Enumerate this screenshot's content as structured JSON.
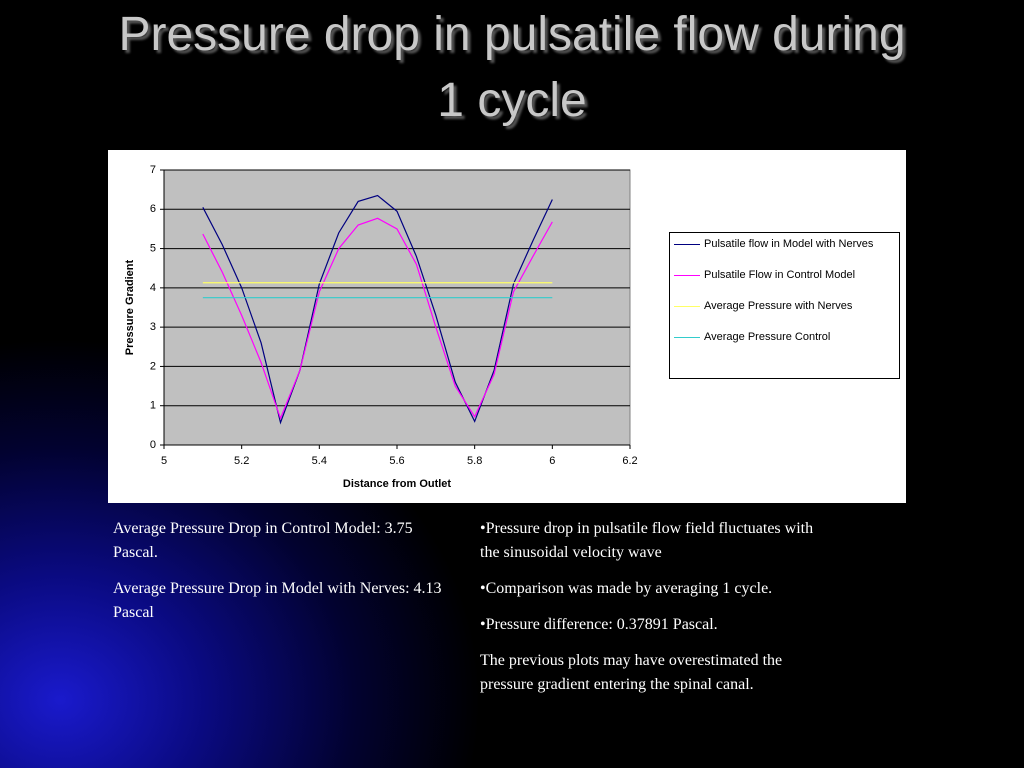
{
  "title": "Pressure drop in pulsatile flow during 1 cycle",
  "chart_data": {
    "type": "line",
    "xlabel": "Distance from Outlet",
    "ylabel": "Pressure Gradient",
    "xlim": [
      5,
      6.2
    ],
    "xticks": [
      5,
      5.2,
      5.4,
      5.6,
      5.8,
      6,
      6.2
    ],
    "ylim": [
      0,
      7
    ],
    "yticks": [
      0,
      1,
      2,
      3,
      4,
      5,
      6,
      7
    ],
    "grid": true,
    "legend": "right",
    "series": [
      {
        "name": "Pulsatile flow in Model with Nerves",
        "color": "#000080",
        "x": [
          5.1,
          5.15,
          5.2,
          5.25,
          5.3,
          5.35,
          5.4,
          5.45,
          5.5,
          5.55,
          5.6,
          5.65,
          5.7,
          5.75,
          5.8,
          5.85,
          5.9,
          5.95,
          6.0
        ],
        "values": [
          6.05,
          5.1,
          4.0,
          2.6,
          0.57,
          1.9,
          4.1,
          5.4,
          6.2,
          6.35,
          5.95,
          4.8,
          3.3,
          1.6,
          0.6,
          1.9,
          4.1,
          5.2,
          6.25
        ]
      },
      {
        "name": "Pulsatile Flow in Control Model",
        "color": "#ff00ff",
        "x": [
          5.1,
          5.15,
          5.2,
          5.25,
          5.3,
          5.35,
          5.4,
          5.45,
          5.5,
          5.55,
          5.6,
          5.65,
          5.7,
          5.75,
          5.8,
          5.85,
          5.9,
          5.95,
          6.0
        ],
        "values": [
          5.37,
          4.4,
          3.3,
          2.1,
          0.68,
          1.9,
          3.9,
          5.0,
          5.6,
          5.77,
          5.5,
          4.6,
          3.0,
          1.5,
          0.72,
          1.8,
          3.9,
          4.8,
          5.68
        ]
      },
      {
        "name": "Average Pressure with Nerves",
        "color": "#ffff66",
        "x": [
          5.1,
          6.0
        ],
        "values": [
          4.13,
          4.13
        ]
      },
      {
        "name": "Average Pressure Control",
        "color": "#33cccc",
        "x": [
          5.1,
          6.0
        ],
        "values": [
          3.75,
          3.75
        ]
      }
    ]
  },
  "left_text": [
    "Average Pressure Drop in Control Model: 3.75 Pascal.",
    "Average Pressure Drop in Model with Nerves: 4.13 Pascal"
  ],
  "right_text": [
    "•Pressure drop in pulsatile flow field fluctuates with the sinusoidal velocity wave",
    "•Comparison was made by averaging 1 cycle.",
    "•Pressure difference: 0.37891 Pascal.",
    "The previous plots may have overestimated the pressure gradient entering the spinal canal."
  ]
}
